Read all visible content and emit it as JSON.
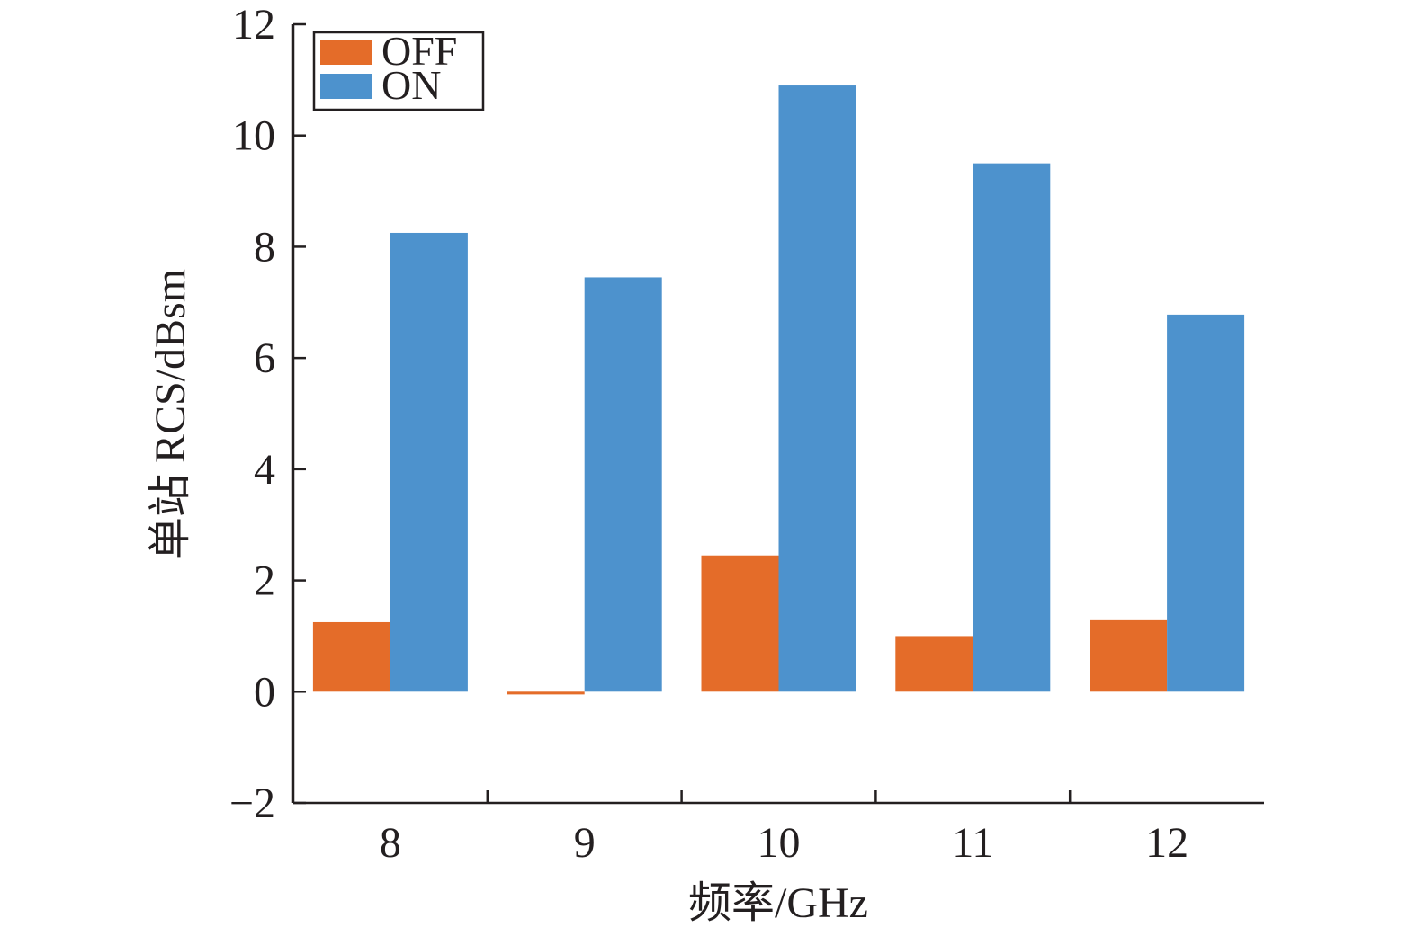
{
  "chart_data": {
    "type": "bar",
    "categories": [
      "8",
      "9",
      "10",
      "11",
      "12"
    ],
    "series": [
      {
        "name": "OFF",
        "color": "#e46c29",
        "values": [
          1.25,
          -0.05,
          2.45,
          1.0,
          1.3
        ]
      },
      {
        "name": "ON",
        "color": "#4d92cd",
        "values": [
          8.25,
          7.45,
          10.9,
          9.5,
          6.78
        ]
      }
    ],
    "xlabel": "频率/GHz",
    "ylabel": "单站 RCS/dBsm",
    "ylim": [
      -2,
      12
    ],
    "yticks": [
      "−2",
      "0",
      "2",
      "4",
      "6",
      "8",
      "10",
      "12"
    ],
    "legend_position": "top-left",
    "grid": false
  }
}
